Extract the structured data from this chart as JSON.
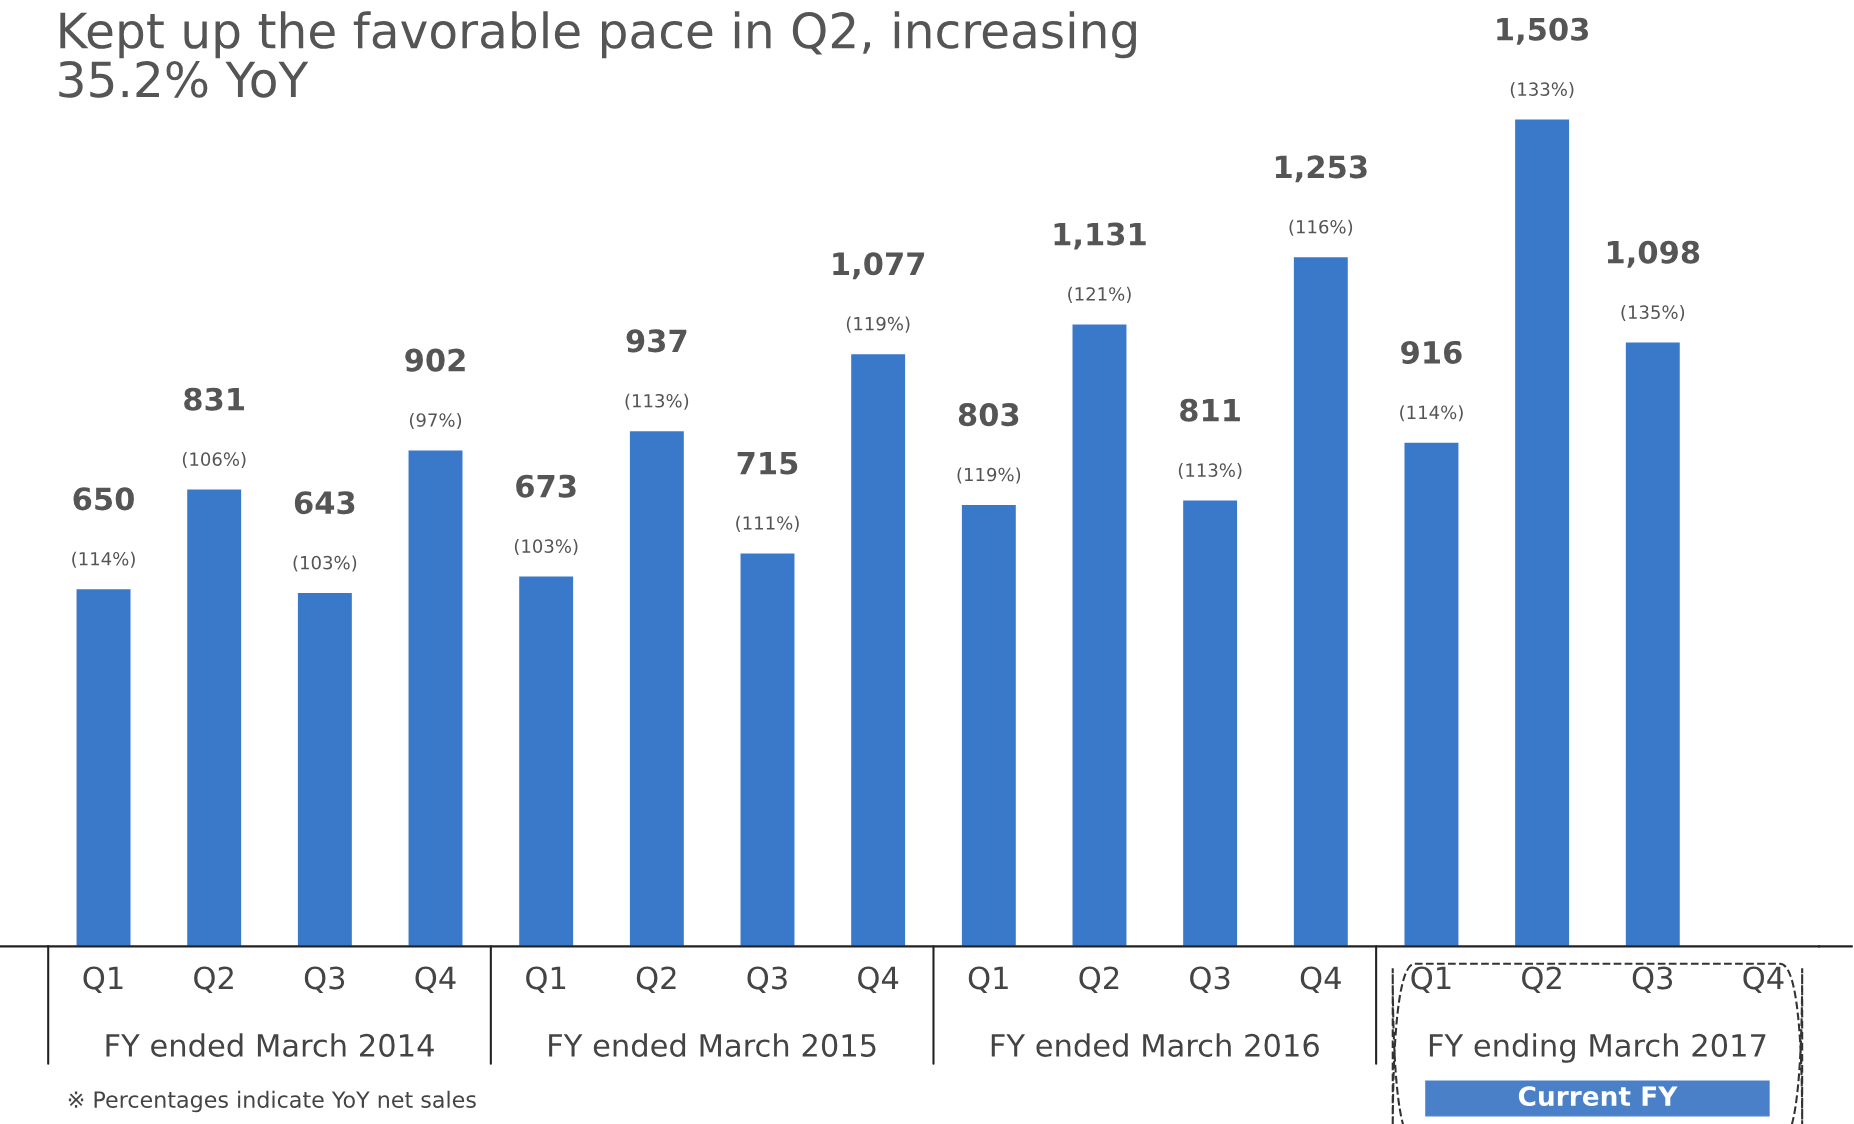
{
  "chart_data": {
    "type": "bar",
    "title": "Kept up the favorable pace in Q2, increasing\n35.2% YoY",
    "categories": [
      "Q1",
      "Q2",
      "Q3",
      "Q4",
      "Q1",
      "Q2",
      "Q3",
      "Q4",
      "Q1",
      "Q2",
      "Q3",
      "Q4",
      "Q1",
      "Q2",
      "Q3",
      "Q4"
    ],
    "values": [
      650,
      831,
      643,
      902,
      673,
      937,
      715,
      1077,
      803,
      1131,
      811,
      1253,
      916,
      1503,
      1098,
      null
    ],
    "value_labels": [
      "650",
      "831",
      "643",
      "902",
      "673",
      "937",
      "715",
      "1,077",
      "803",
      "1,131",
      "811",
      "1,253",
      "916",
      "1,503",
      "1,098",
      null
    ],
    "color": "#3a78c9",
    "tick_labels": "x",
    "grid": false,
    "annotations": [
      "(114%)",
      "(106%)",
      "(103%)",
      "(97%)",
      "(103%)",
      "(113%)",
      "(111%)",
      "(119%)",
      "(119%)",
      "(121%)",
      "(113%)",
      "(116%)",
      "(114%)",
      "(133%)",
      "(135%)",
      "FY ended March 2014",
      "FY ended March 2015",
      "FY ended March 2016",
      "FY ending March 2017",
      "Current FY",
      "※ Percentages indicate YoY net sales"
    ]
  }
}
